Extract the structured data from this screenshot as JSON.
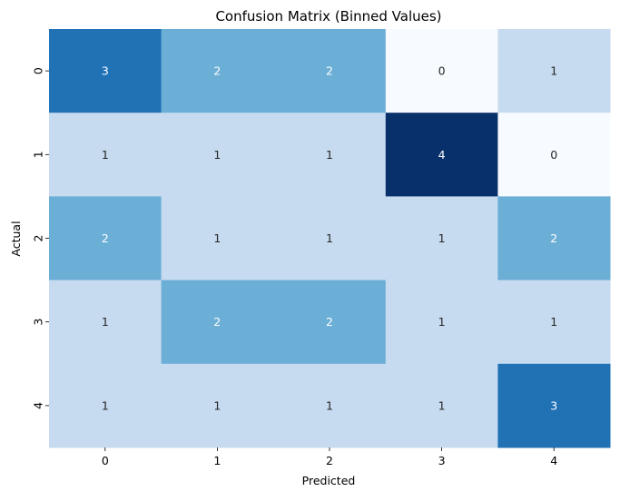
{
  "chart_data": {
    "type": "heatmap",
    "title": "Confusion Matrix (Binned Values)",
    "xlabel": "Predicted",
    "ylabel": "Actual",
    "x_categories": [
      "0",
      "1",
      "2",
      "3",
      "4"
    ],
    "y_categories": [
      "0",
      "1",
      "2",
      "3",
      "4"
    ],
    "values": [
      [
        3,
        2,
        2,
        0,
        1
      ],
      [
        1,
        1,
        1,
        4,
        0
      ],
      [
        2,
        1,
        1,
        1,
        2
      ],
      [
        1,
        2,
        2,
        1,
        1
      ],
      [
        1,
        1,
        1,
        1,
        3
      ]
    ],
    "value_range": [
      0,
      4
    ],
    "colormap": "Blues",
    "colorbar": false,
    "annotations": true,
    "colors": {
      "0": "#f7fbff",
      "1": "#c6dbef",
      "2": "#6baed6",
      "3": "#2171b5",
      "4": "#08306b"
    }
  }
}
